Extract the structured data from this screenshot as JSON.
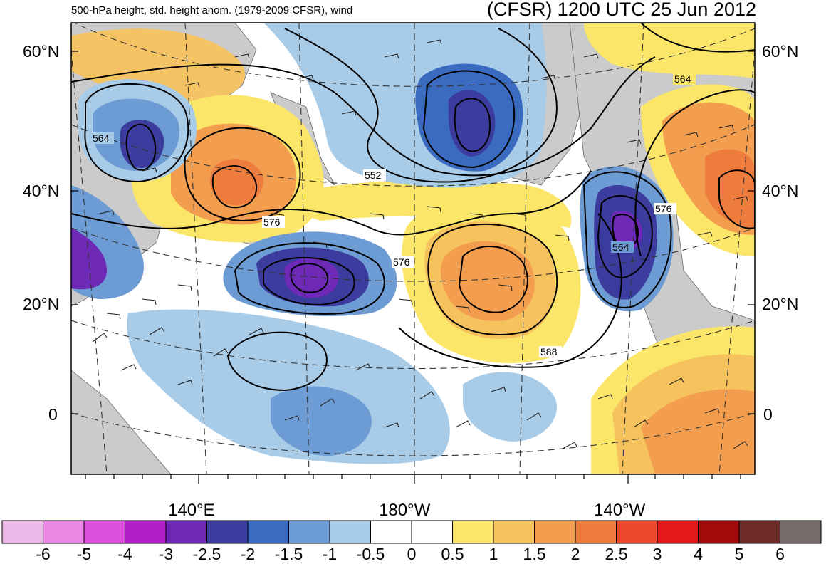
{
  "header": {
    "left_title": "500-hPa height, std. height anom. (1979-2009 CFSR), wind",
    "right_title": "(CFSR) 1200 UTC 25 Jun 2012"
  },
  "axes": {
    "lat_labels_left": [
      "60°N",
      "40°N",
      "20°N",
      "0"
    ],
    "lat_labels_right": [
      "60°N",
      "40°N",
      "20°N",
      "0"
    ],
    "lon_labels": [
      "140°E",
      "180°W",
      "140°W"
    ]
  },
  "contour_labels": [
    "564",
    "552",
    "576",
    "576",
    "576",
    "564",
    "564",
    "588"
  ],
  "colorbar": {
    "colors": [
      "#ebb9e8",
      "#e887e4",
      "#dc4fdc",
      "#b31ec8",
      "#6e2ab6",
      "#3c3c9e",
      "#3a6bc0",
      "#6d9bd3",
      "#a8cbe8",
      "#ffffff",
      "#ffffff",
      "#fbe66a",
      "#f5c25e",
      "#f29e4e",
      "#ee7c3c",
      "#ec4a2c",
      "#e41818",
      "#a00a0a",
      "#6e2a28",
      "#756b69"
    ],
    "labels": [
      "-6",
      "-5",
      "-4",
      "-3",
      "-2.5",
      "-2",
      "-1.5",
      "-1",
      "-0.5",
      "0",
      "0.5",
      "1",
      "1.5",
      "2",
      "2.5",
      "3",
      "4",
      "5",
      "6"
    ]
  },
  "map": {
    "ocean_color": "#ffffff",
    "land_color": "#cbcbcb"
  }
}
